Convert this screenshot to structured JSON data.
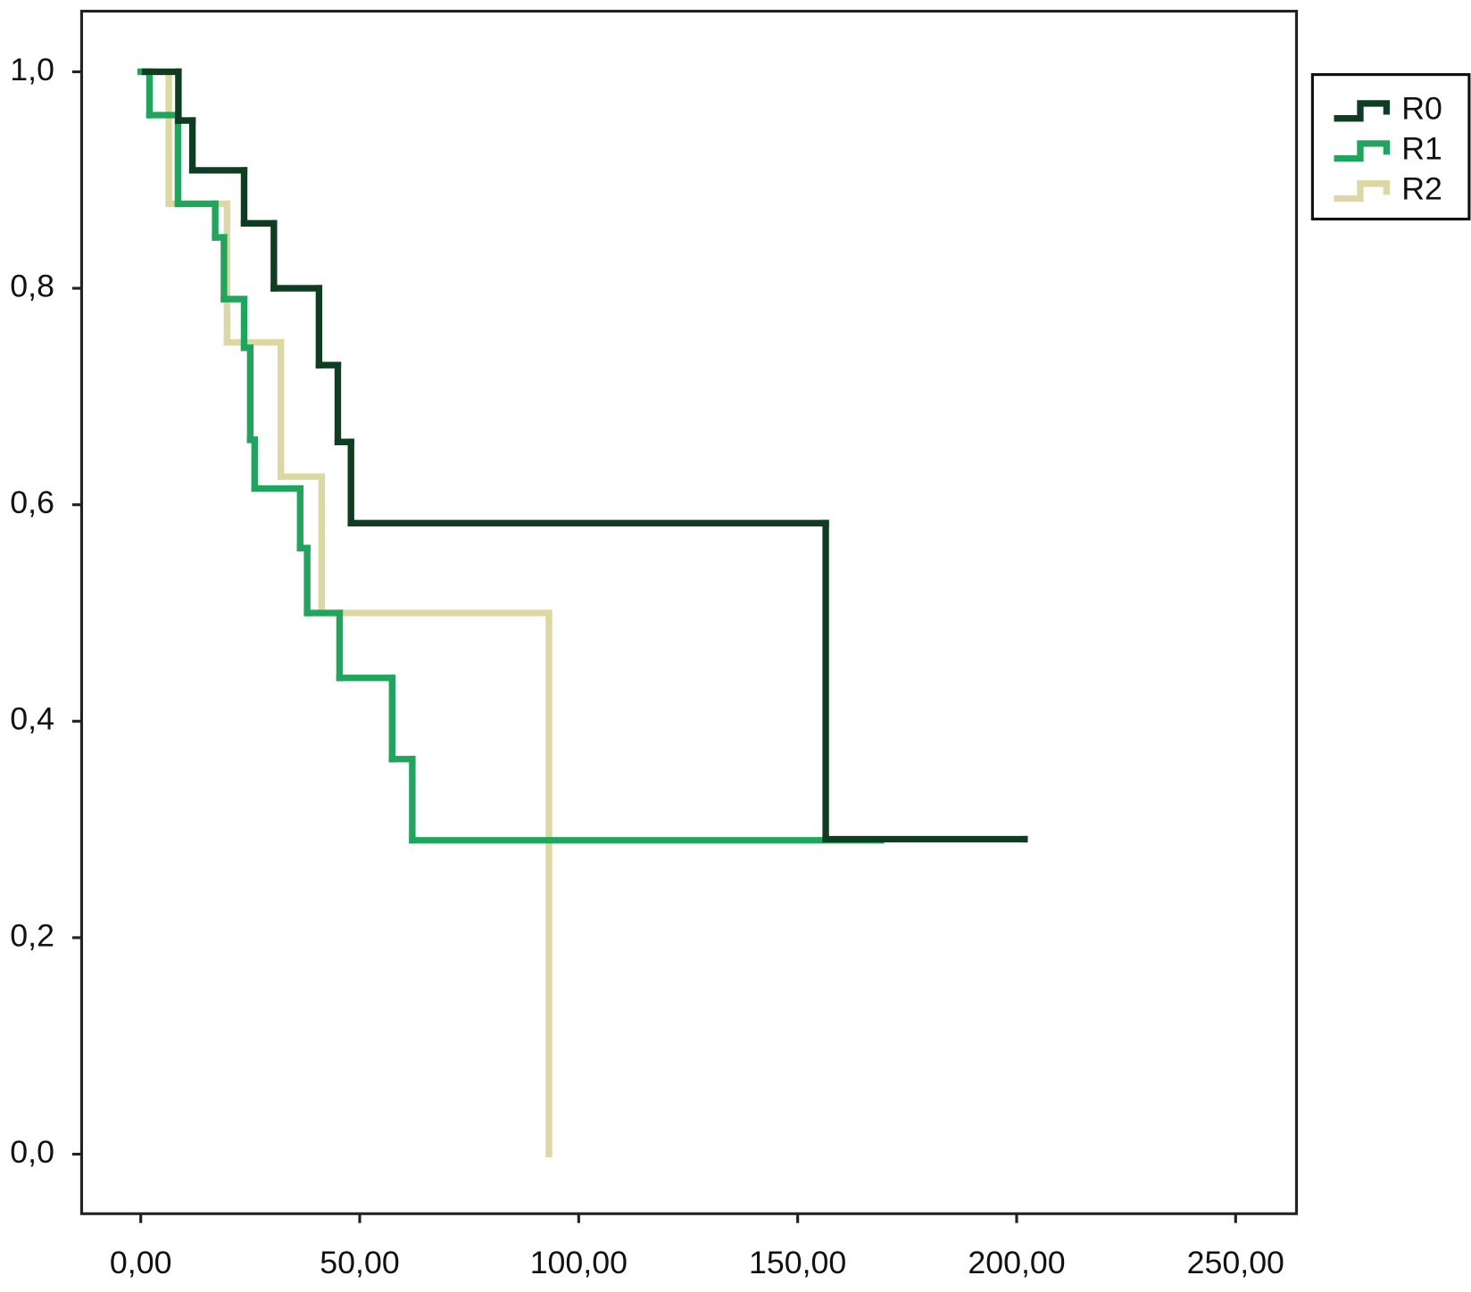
{
  "chart_data": {
    "type": "step",
    "xlim": [
      -13.5,
      263.9
    ],
    "ylim": [
      -0.055,
      1.056
    ],
    "xticks": [
      {
        "value": 0,
        "label": "0,00"
      },
      {
        "value": 50,
        "label": "50,00"
      },
      {
        "value": 100,
        "label": "100,00"
      },
      {
        "value": 150,
        "label": "150,00"
      },
      {
        "value": 200,
        "label": "200,00"
      },
      {
        "value": 250,
        "label": "250,00"
      }
    ],
    "yticks": [
      {
        "value": 0,
        "label": "0,0"
      },
      {
        "value": 0.2,
        "label": "0,2"
      },
      {
        "value": 0.4,
        "label": "0,4"
      },
      {
        "value": 0.6,
        "label": "0,6"
      },
      {
        "value": 0.8,
        "label": "0,8"
      },
      {
        "value": 1.0,
        "label": "1,0"
      }
    ],
    "legend": "outside-top-right",
    "series": [
      {
        "name": "R0",
        "color": "#0f3d22",
        "x": [
          1,
          8.6,
          11.8,
          23.6,
          30.4,
          40.7,
          45,
          48,
          156.4,
          201.8
        ],
        "values": [
          1.0,
          0.955,
          0.909,
          0.86,
          0.8,
          0.729,
          0.658,
          0.583,
          0.291,
          0.291
        ]
      },
      {
        "name": "R1",
        "color": "#1fa55c",
        "x": [
          0,
          2,
          8.5,
          17,
          19,
          23.6,
          25,
          26,
          36.4,
          38,
          45.4,
          57.4,
          62,
          169
        ],
        "values": [
          1.0,
          0.96,
          0.878,
          0.847,
          0.79,
          0.745,
          0.66,
          0.615,
          0.56,
          0.5,
          0.44,
          0.365,
          0.29,
          0.29
        ]
      },
      {
        "name": "R2",
        "color": "#ddd7a2",
        "x": [
          0,
          6.4,
          19.7,
          32,
          41.3,
          93.2
        ],
        "values": [
          1.0,
          0.878,
          0.75,
          0.626,
          0.5,
          0.0
        ]
      }
    ]
  }
}
